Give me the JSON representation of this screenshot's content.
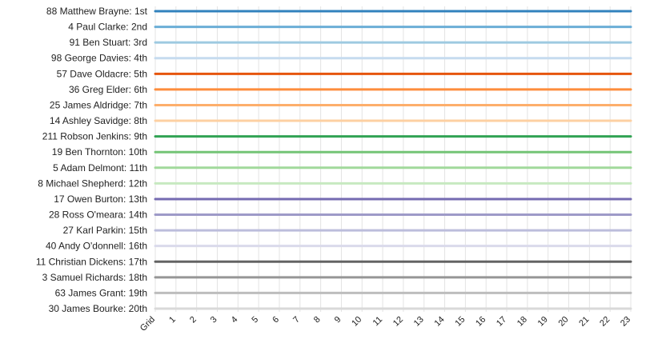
{
  "chart_data": {
    "type": "line",
    "title": "",
    "xlabel": "",
    "ylabel": "",
    "x": [
      "Grid",
      "1",
      "2",
      "3",
      "4",
      "5",
      "6",
      "7",
      "8",
      "9",
      "10",
      "11",
      "12",
      "13",
      "14",
      "15",
      "16",
      "17",
      "18",
      "19",
      "20",
      "21",
      "22",
      "23"
    ],
    "position_labels": [
      "1st",
      "2nd",
      "3rd",
      "4th",
      "5th",
      "6th",
      "7th",
      "8th",
      "9th",
      "10th",
      "11th",
      "12th",
      "13th",
      "14th",
      "15th",
      "16th",
      "17th",
      "18th",
      "19th",
      "20th"
    ],
    "y_range": [
      1,
      20
    ],
    "grid": "vertical",
    "series": [
      {
        "name": "88 Matthew Brayne",
        "color": "#3182bd",
        "positions": [
          1,
          1,
          1,
          1,
          1,
          1,
          1,
          1,
          1,
          1,
          1,
          1,
          1,
          1,
          1,
          1,
          1,
          1,
          1,
          1,
          1,
          1,
          1,
          1
        ]
      },
      {
        "name": "4 Paul Clarke",
        "color": "#6baed6",
        "positions": [
          2,
          2,
          2,
          2,
          2,
          2,
          2,
          2,
          2,
          2,
          2,
          2,
          2,
          2,
          2,
          2,
          2,
          2,
          2,
          2,
          2,
          2,
          2,
          2
        ]
      },
      {
        "name": "91 Ben Stuart",
        "color": "#9ecae1",
        "positions": [
          3,
          3,
          3,
          3,
          3,
          3,
          3,
          3,
          3,
          3,
          3,
          3,
          3,
          3,
          3,
          3,
          3,
          3,
          3,
          3,
          3,
          3,
          3,
          3
        ]
      },
      {
        "name": "98 George Davies",
        "color": "#c6dbef",
        "positions": [
          4,
          4,
          4,
          4,
          4,
          4,
          4,
          4,
          4,
          4,
          4,
          4,
          4,
          4,
          4,
          4,
          4,
          4,
          4,
          4,
          4,
          4,
          4,
          4
        ]
      },
      {
        "name": "57 Dave Oldacre",
        "color": "#e6550d",
        "positions": [
          5,
          5,
          5,
          5,
          5,
          5,
          5,
          5,
          5,
          5,
          5,
          5,
          5,
          5,
          5,
          5,
          5,
          5,
          5,
          5,
          5,
          5,
          5,
          5
        ]
      },
      {
        "name": "36 Greg Elder",
        "color": "#fd8d3c",
        "positions": [
          6,
          6,
          6,
          6,
          6,
          6,
          6,
          6,
          6,
          6,
          6,
          6,
          6,
          6,
          6,
          6,
          6,
          6,
          6,
          6,
          6,
          6,
          6,
          6
        ]
      },
      {
        "name": "25 James Aldridge",
        "color": "#fdae6b",
        "positions": [
          7,
          7,
          7,
          7,
          7,
          7,
          7,
          7,
          7,
          7,
          7,
          7,
          7,
          7,
          7,
          7,
          7,
          7,
          7,
          7,
          7,
          7,
          7,
          7
        ]
      },
      {
        "name": "14 Ashley Savidge",
        "color": "#fdd0a2",
        "positions": [
          8,
          8,
          8,
          8,
          8,
          8,
          8,
          8,
          8,
          8,
          8,
          8,
          8,
          8,
          8,
          8,
          8,
          8,
          8,
          8,
          8,
          8,
          8,
          8
        ]
      },
      {
        "name": "211 Robson Jenkins",
        "color": "#31a354",
        "positions": [
          9,
          9,
          9,
          9,
          9,
          9,
          9,
          9,
          9,
          9,
          9,
          9,
          9,
          9,
          9,
          9,
          9,
          9,
          9,
          9,
          9,
          9,
          9,
          9
        ]
      },
      {
        "name": "19 Ben Thornton",
        "color": "#74c476",
        "positions": [
          10,
          10,
          10,
          10,
          10,
          10,
          10,
          10,
          10,
          10,
          10,
          10,
          10,
          10,
          10,
          10,
          10,
          10,
          10,
          10,
          10,
          10,
          10,
          10
        ]
      },
      {
        "name": "5 Adam Delmont",
        "color": "#a1d99b",
        "positions": [
          11,
          11,
          11,
          11,
          11,
          11,
          11,
          11,
          11,
          11,
          11,
          11,
          11,
          11,
          11,
          11,
          11,
          11,
          11,
          11,
          11,
          11,
          11,
          11
        ]
      },
      {
        "name": "8 Michael Shepherd",
        "color": "#c7e9c0",
        "positions": [
          12,
          12,
          12,
          12,
          12,
          12,
          12,
          12,
          12,
          12,
          12,
          12,
          12,
          12,
          12,
          12,
          12,
          12,
          12,
          12,
          12,
          12,
          12,
          12
        ]
      },
      {
        "name": "17 Owen Burton",
        "color": "#756bb1",
        "positions": [
          13,
          13,
          13,
          13,
          13,
          13,
          13,
          13,
          13,
          13,
          13,
          13,
          13,
          13,
          13,
          13,
          13,
          13,
          13,
          13,
          13,
          13,
          13,
          13
        ]
      },
      {
        "name": "28 Ross O'meara",
        "color": "#9e9ac8",
        "positions": [
          14,
          14,
          14,
          14,
          14,
          14,
          14,
          14,
          14,
          14,
          14,
          14,
          14,
          14,
          14,
          14,
          14,
          14,
          14,
          14,
          14,
          14,
          14,
          14
        ]
      },
      {
        "name": "27 Karl Parkin",
        "color": "#bcbddc",
        "positions": [
          15,
          15,
          15,
          15,
          15,
          15,
          15,
          15,
          15,
          15,
          15,
          15,
          15,
          15,
          15,
          15,
          15,
          15,
          15,
          15,
          15,
          15,
          15,
          15
        ]
      },
      {
        "name": "40 Andy O'donnell",
        "color": "#dadaeb",
        "positions": [
          16,
          16,
          16,
          16,
          16,
          16,
          16,
          16,
          16,
          16,
          16,
          16,
          16,
          16,
          16,
          16,
          16,
          16,
          16,
          16,
          16,
          16,
          16,
          16
        ]
      },
      {
        "name": "11 Christian Dickens",
        "color": "#636363",
        "positions": [
          17,
          17,
          17,
          17,
          17,
          17,
          17,
          17,
          17,
          17,
          17,
          17,
          17,
          17,
          17,
          17,
          17,
          17,
          17,
          17,
          17,
          17,
          17,
          17
        ]
      },
      {
        "name": "3 Samuel Richards",
        "color": "#969696",
        "positions": [
          18,
          18,
          18,
          18,
          18,
          18,
          18,
          18,
          18,
          18,
          18,
          18,
          18,
          18,
          18,
          18,
          18,
          18,
          18,
          18,
          18,
          18,
          18,
          18
        ]
      },
      {
        "name": "63 James Grant",
        "color": "#bdbdbd",
        "positions": [
          19,
          19,
          19,
          19,
          19,
          19,
          19,
          19,
          19,
          19,
          19,
          19,
          19,
          19,
          19,
          19,
          19,
          19,
          19,
          19,
          19,
          19,
          19,
          19
        ]
      },
      {
        "name": "30 James Bourke",
        "color": "#d9d9d9",
        "positions": [
          20,
          20,
          20,
          20,
          20,
          20,
          20,
          20,
          20,
          20,
          20,
          20,
          20,
          20,
          20,
          20,
          20,
          20,
          20,
          20,
          20,
          20,
          20,
          20
        ]
      }
    ]
  }
}
